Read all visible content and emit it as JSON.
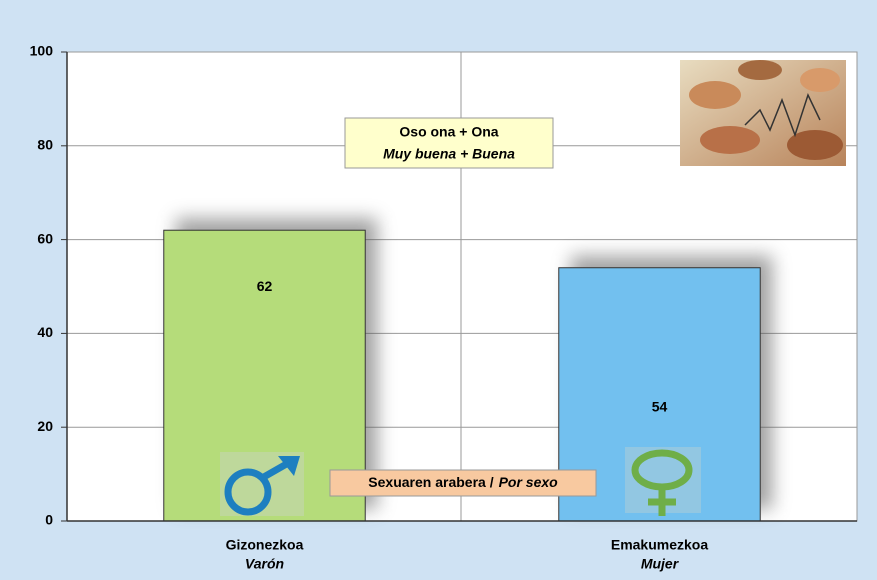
{
  "chart_data": {
    "type": "bar",
    "annotation": [
      "Oso ona + Ona",
      "Muy buena + Buena"
    ],
    "xlabel": [
      "Sexuaren arabera /",
      "Por sexo"
    ],
    "categories": [
      "Gizonezkoa",
      "Emakumezkoa"
    ],
    "category_translations": [
      "Varón",
      "Mujer"
    ],
    "values": [
      62,
      54
    ],
    "colors": [
      "#b5dc7a",
      "#72c0ef"
    ],
    "ylim": [
      0,
      100
    ],
    "yticks": [
      0,
      20,
      40,
      60,
      80,
      100
    ],
    "grid": true
  }
}
